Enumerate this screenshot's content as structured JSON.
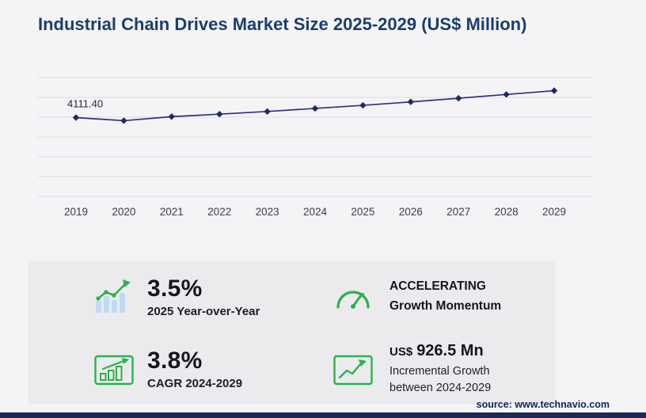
{
  "header": {
    "title": "Industrial Chain Drives Market Size 2025-2029 (US$ Million)"
  },
  "footer": {
    "source": "source: www.technavio.com"
  },
  "colors": {
    "title_blue": "#1b3e6b",
    "line_navy": "#2e2e85",
    "marker_navy": "#23256b",
    "accent_green": "#2bb24c",
    "icon_bar_blue": "#c3d9f3",
    "panel_gray": "#ebebed",
    "page_gray": "#f4f4f6",
    "footer_navy": "#1b2a55",
    "gridline_gray": "#dddde2"
  },
  "chart_data": {
    "type": "line",
    "title": "Industrial Chain Drives Market Size 2025-2029 (US$ Million)",
    "x": [
      "2019",
      "2020",
      "2021",
      "2022",
      "2023",
      "2024",
      "2025",
      "2026",
      "2027",
      "2028",
      "2029"
    ],
    "series": [
      {
        "name": "Industrial Chain Drives Market Size (US$ Million)",
        "values": [
          4111.4,
          3950,
          4160,
          4290,
          4430,
          4590,
          4751,
          4930,
          5120,
          5320,
          5516.5
        ]
      }
    ],
    "first_point_label": "4111.40",
    "xlabel": "",
    "ylabel": "",
    "ylim": [
      0,
      6200
    ],
    "gridline_count": 7,
    "grid": "horizontal",
    "legend_position": "none",
    "marker": "diamond",
    "line_color": "#2e2e85",
    "marker_color": "#23256b"
  },
  "stats": {
    "yoy": {
      "value": "3.5%",
      "label": "2025 Year-over-Year"
    },
    "momentum": {
      "line1": "ACCELERATING",
      "line2": "Growth Momentum"
    },
    "cagr": {
      "value": "3.8%",
      "label": "CAGR 2024-2029"
    },
    "incremental": {
      "currency": "US$",
      "value": "926.5 Mn",
      "line1": "Incremental Growth",
      "line2": "between 2024-2029"
    }
  }
}
